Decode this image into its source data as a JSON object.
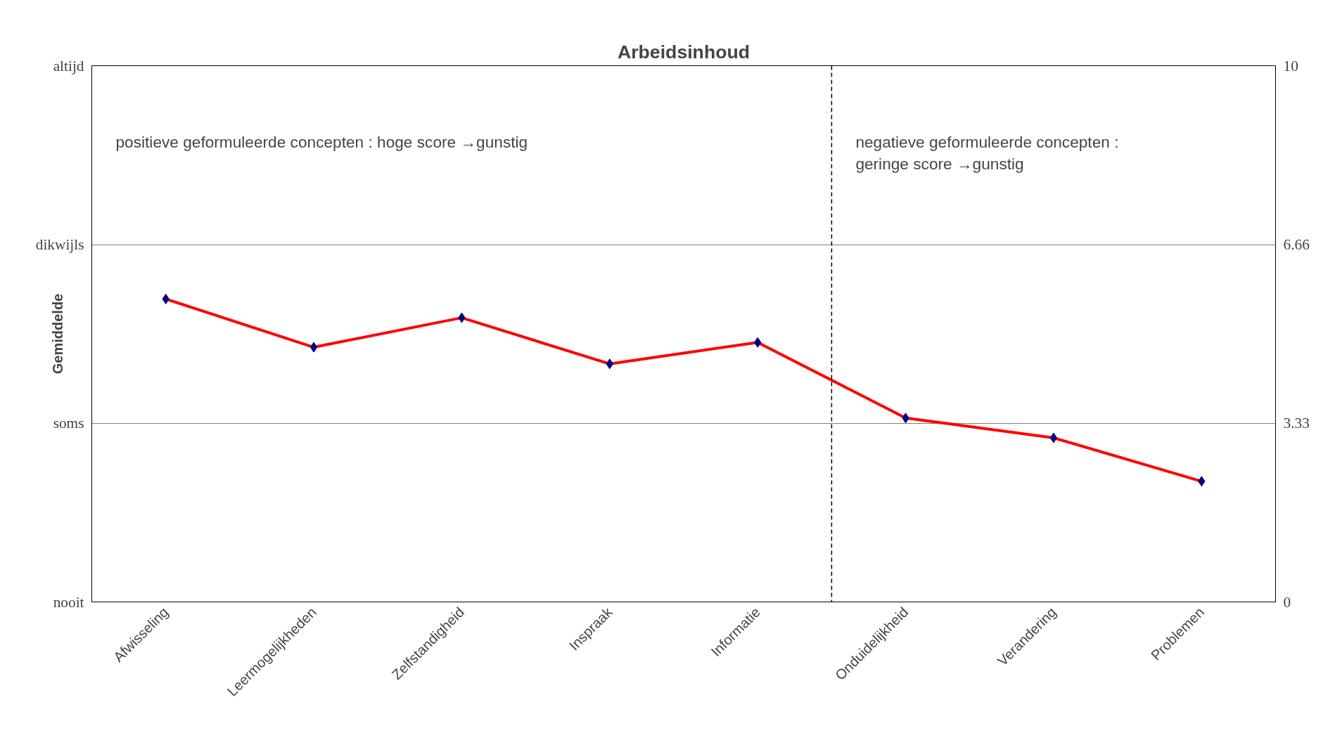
{
  "chart_data": {
    "type": "line",
    "title": "Arbeidsinhoud",
    "ylabel": "Gemiddelde",
    "categories": [
      "Afwisseling",
      "Leermogelijkheden",
      "Zelfstandigheid",
      "Inspraak",
      "Informatie",
      "Onduidelijkheid",
      "Verandering",
      "Problemen"
    ],
    "series": [
      {
        "color": "#ff0000",
        "values": [
          5.65,
          4.75,
          5.3,
          4.44,
          4.84,
          3.43,
          3.06,
          2.25
        ]
      }
    ],
    "ylim": [
      0,
      10
    ],
    "yticks": [
      0,
      3.33,
      6.66,
      10
    ],
    "ref_lines": [
      {
        "axis": "x",
        "value": "Onduidelijkheid",
        "line_style": "dashed",
        "color": "#000000"
      }
    ],
    "grid": "y",
    "marker": "diamond",
    "line_style": "solid",
    "annotations": [
      "positieve geformuleerde concepten : hoge score →gunstig",
      "negatieve geformuleerde concepten :\ngeringe score →gunstig",
      "nooit",
      "soms",
      "dikwijls",
      "altijd"
    ]
  }
}
